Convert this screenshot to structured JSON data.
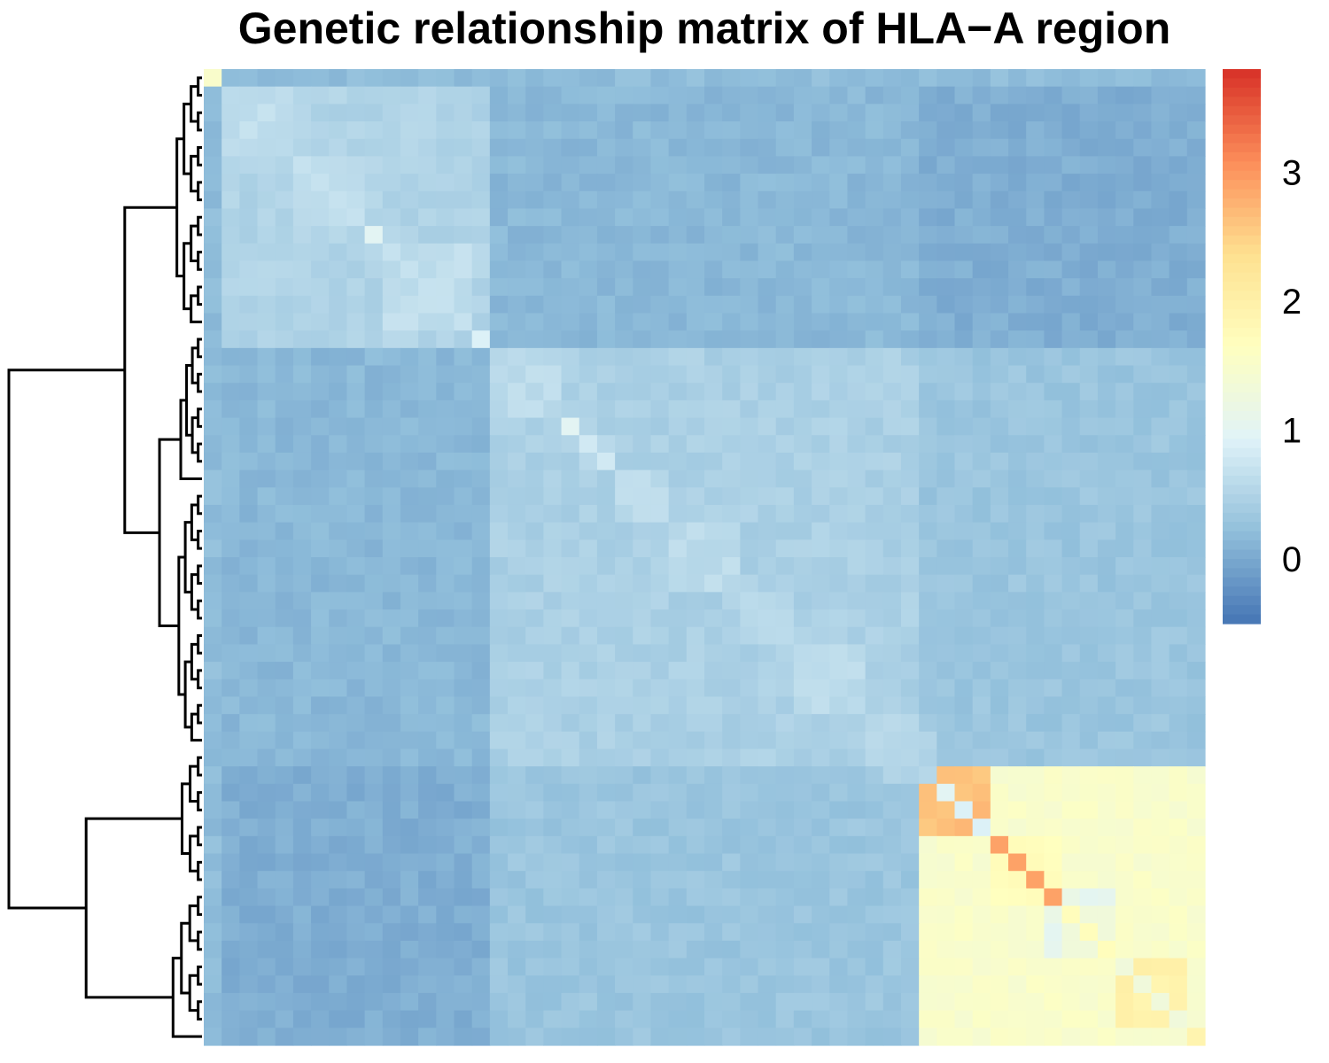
{
  "chart_data": {
    "type": "heatmap",
    "title": "Genetic relationship matrix of HLA−A region",
    "xlabel": "",
    "ylabel": "",
    "matrix_size": 56,
    "clusters": [
      {
        "size": 1,
        "diag": 1.5
      },
      {
        "size": 4,
        "diag": 0.6
      },
      {
        "size": 4,
        "diag": 0.7
      },
      {
        "size": 1,
        "diag": 1.0
      },
      {
        "size": 5,
        "diag": 0.7
      },
      {
        "size": 1,
        "diag": 0.9
      },
      {
        "size": 4,
        "diag": 0.55
      },
      {
        "size": 1,
        "diag": 1.0
      },
      {
        "size": 2,
        "diag": 0.8
      },
      {
        "size": 3,
        "diag": 0.65
      },
      {
        "size": 4,
        "diag": 0.55
      },
      {
        "size": 3,
        "diag": 0.6
      },
      {
        "size": 4,
        "diag": 0.6
      },
      {
        "size": 4,
        "diag": 0.55
      },
      {
        "size": 1,
        "diag": 1.0
      },
      {
        "size": 2,
        "diag": 0.9
      },
      {
        "size": 4,
        "diag": 2.9
      },
      {
        "size": 3,
        "diag": 1.7
      },
      {
        "size": 4,
        "diag": 1.3
      },
      {
        "size": 4,
        "diag": 1.9
      },
      {
        "size": 1,
        "diag": 3.6
      }
    ],
    "block_values": [
      {
        "rows": [
          1,
          15
        ],
        "cols": [
          1,
          15
        ],
        "value": 0.5
      },
      {
        "rows": [
          1,
          15
        ],
        "cols": [
          16,
          55
        ],
        "value": 0.15
      },
      {
        "rows": [
          16,
          39
        ],
        "cols": [
          16,
          39
        ],
        "value": 0.45
      },
      {
        "rows": [
          1,
          15
        ],
        "cols": [
          40,
          55
        ],
        "value": 0.05
      },
      {
        "rows": [
          16,
          39
        ],
        "cols": [
          40,
          55
        ],
        "value": 0.3
      },
      {
        "rows": [
          40,
          55
        ],
        "cols": [
          40,
          55
        ],
        "value": 1.5
      },
      {
        "rows": [
          40,
          43
        ],
        "cols": [
          40,
          43
        ],
        "value": 2.6
      },
      {
        "rows": [
          44,
          46
        ],
        "cols": [
          44,
          46
        ],
        "value": 1.6
      },
      {
        "rows": [
          47,
          50
        ],
        "cols": [
          47,
          50
        ],
        "value": 1.1
      },
      {
        "rows": [
          51,
          54
        ],
        "cols": [
          51,
          54
        ],
        "value": 1.8
      }
    ],
    "colorbar": {
      "min": -0.5,
      "max": 3.8,
      "ticks": [
        "0",
        "1",
        "2",
        "3"
      ],
      "tick_values": [
        0,
        1,
        2,
        3
      ],
      "colors": [
        "#4575b4",
        "#91bfdb",
        "#e0f3f8",
        "#ffffbf",
        "#fee090",
        "#fc8d59",
        "#d73027"
      ]
    },
    "dendrogram": "left",
    "grid": false,
    "legend": "right"
  }
}
